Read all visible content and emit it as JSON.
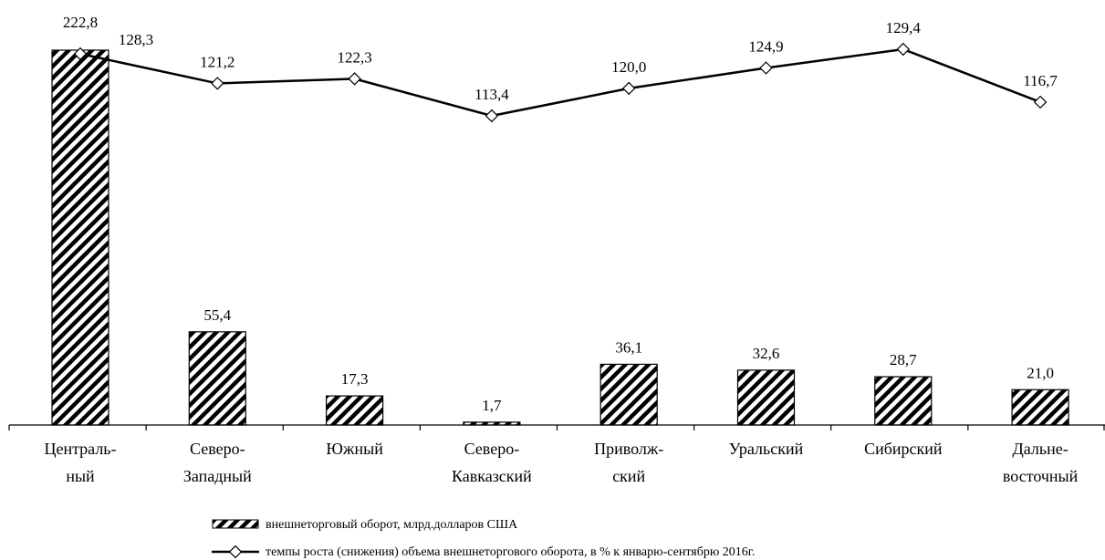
{
  "chart_data": {
    "type": "bar",
    "categories": [
      [
        "Централь-",
        "ный"
      ],
      [
        "Северо-",
        "Западный"
      ],
      [
        "Южный"
      ],
      [
        "Северо-",
        "Кавказский"
      ],
      [
        "Приволж-",
        "ский"
      ],
      [
        "Уральский"
      ],
      [
        "Сибирский"
      ],
      [
        "Дальне-",
        "восточный"
      ]
    ],
    "series": [
      {
        "name": "внешнеторговый оборот, млрд.долларов США",
        "type": "bar",
        "values": [
          222.8,
          55.4,
          17.3,
          1.7,
          36.1,
          32.6,
          28.7,
          21.0
        ],
        "labels": [
          "222,8",
          "55,4",
          "17,3",
          "1,7",
          "36,1",
          "32,6",
          "28,7",
          "21,0"
        ]
      },
      {
        "name": "темпы роста (снижения) объема внешнеторгового оборота, в % к январю-сентябрю 2016г.",
        "type": "line",
        "values": [
          128.3,
          121.2,
          122.3,
          113.4,
          120.0,
          124.9,
          129.4,
          116.7
        ],
        "labels": [
          "128,3",
          "121,2",
          "122,3",
          "113,4",
          "120,0",
          "124,9",
          "129,4",
          "116,7"
        ]
      }
    ],
    "bar_fill": "hatched",
    "line_color": "#000000",
    "grid": false,
    "legend_position": "bottom"
  }
}
